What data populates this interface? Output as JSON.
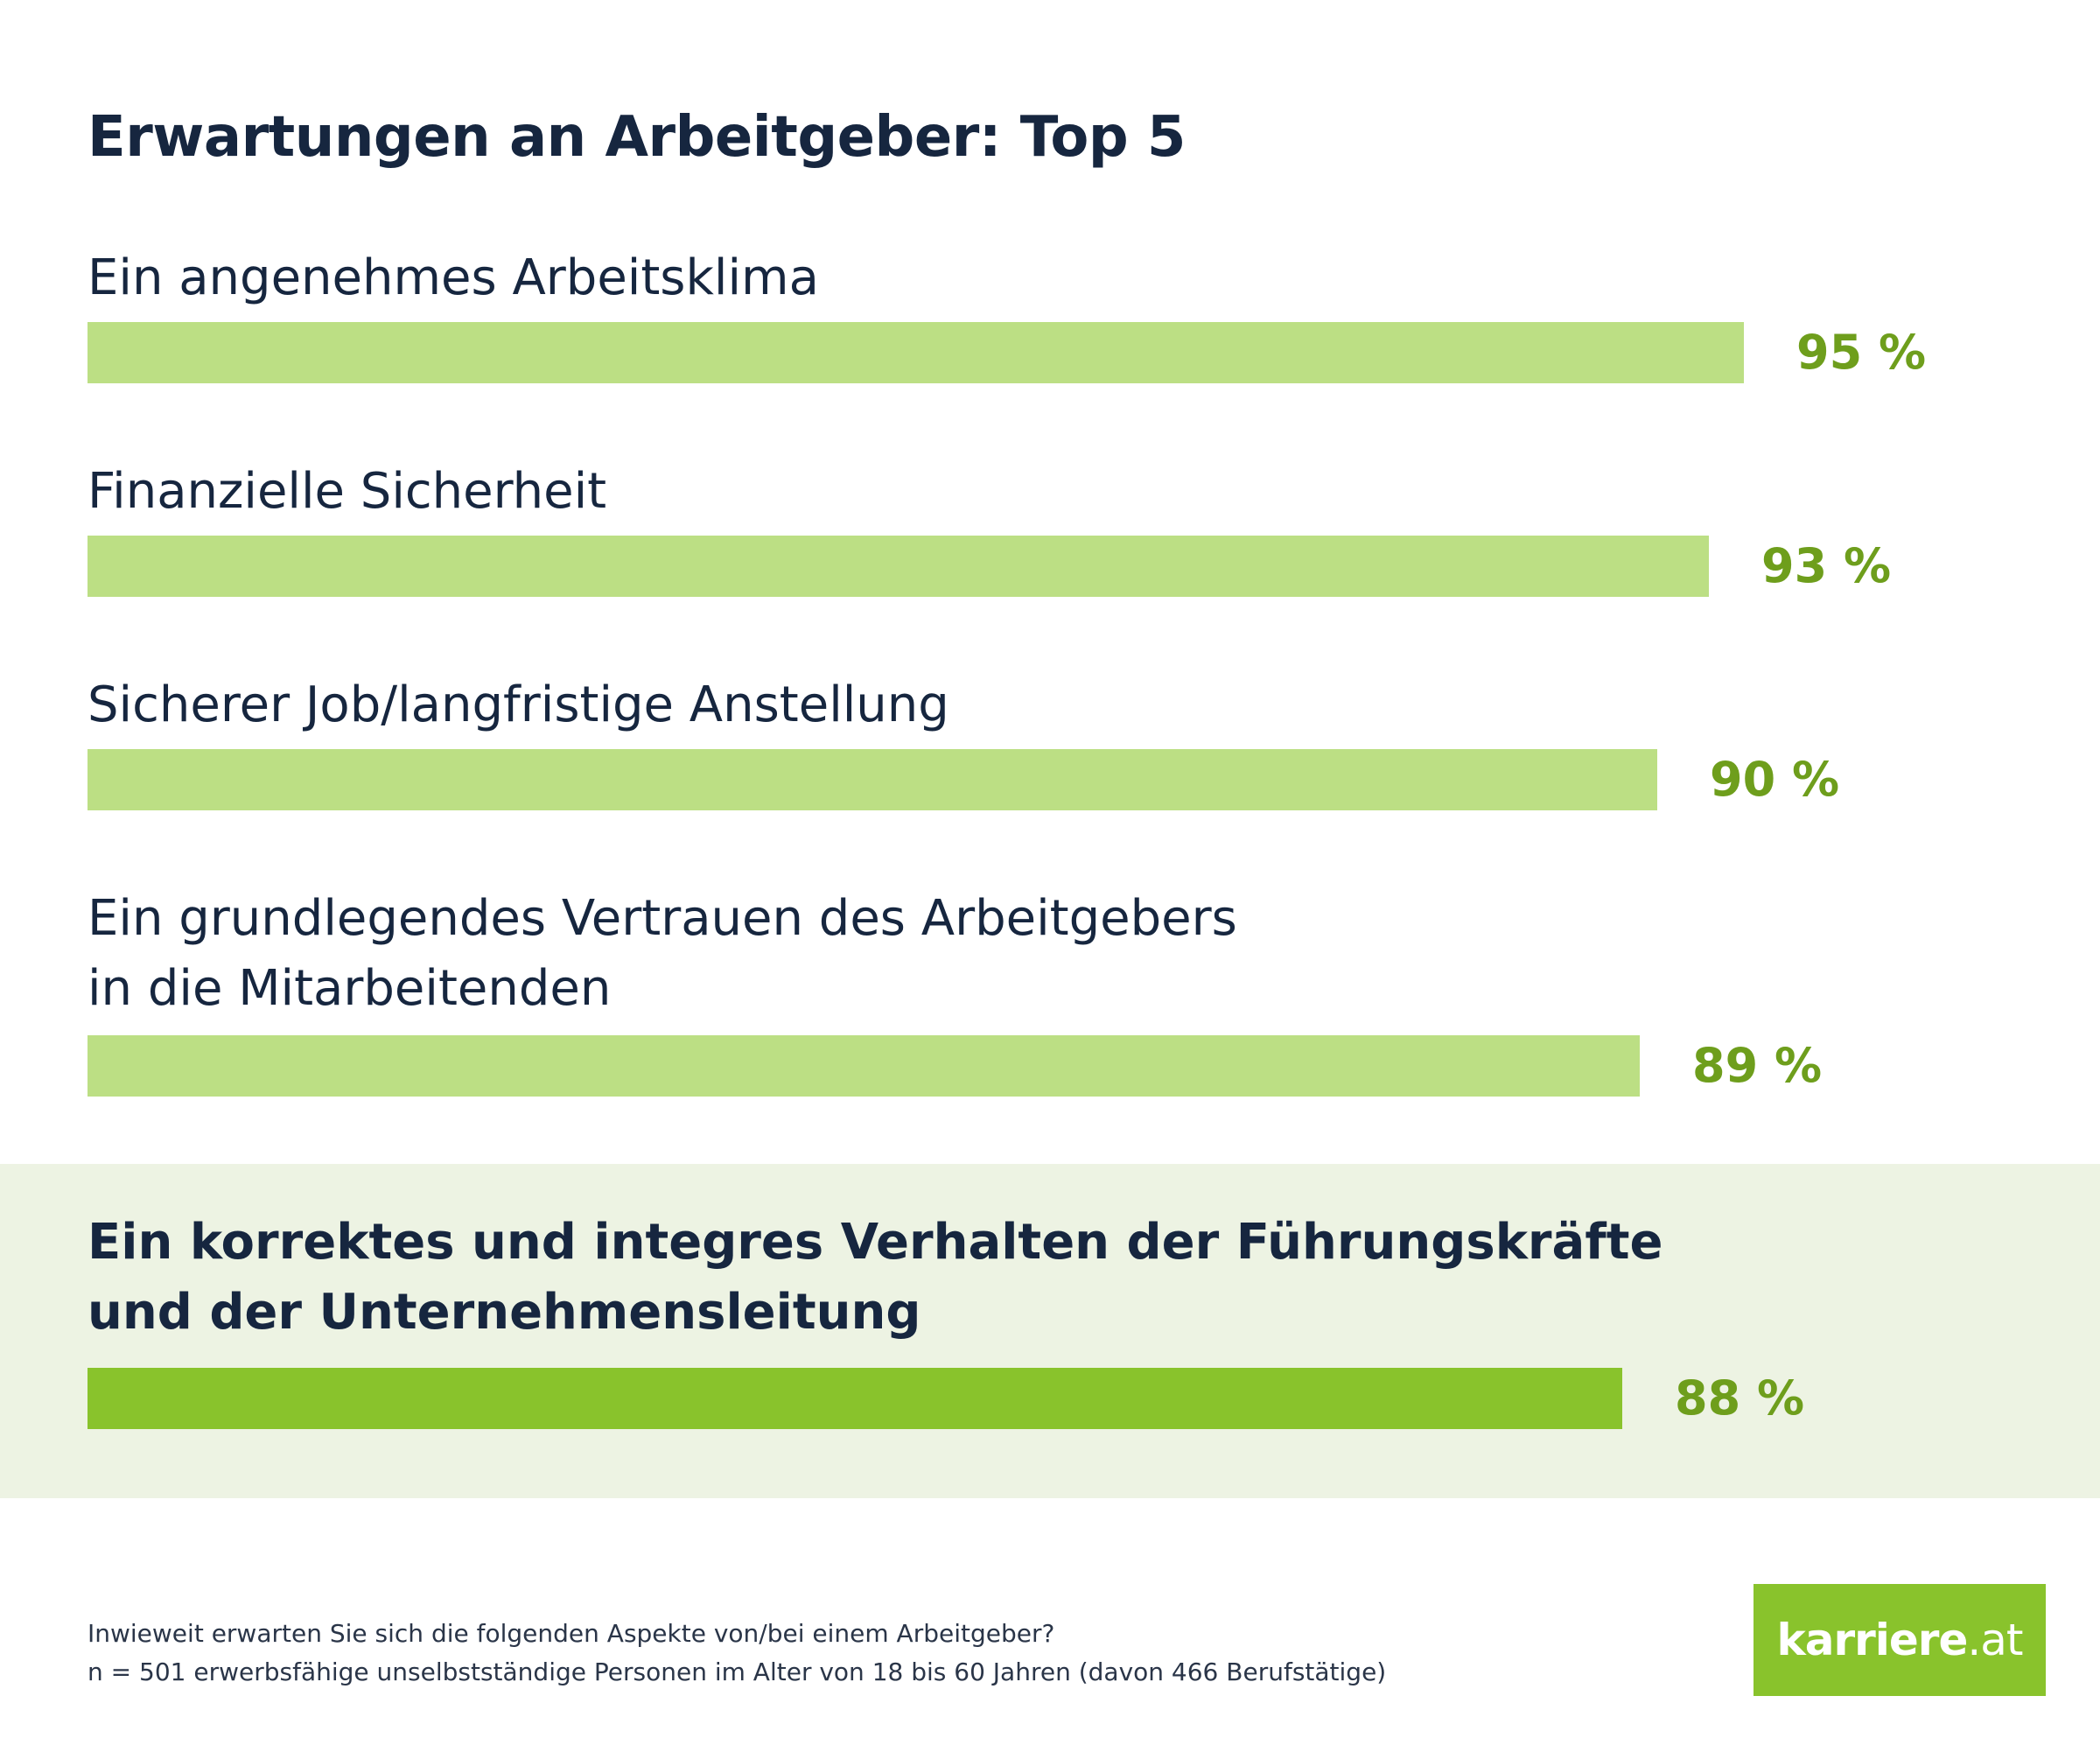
{
  "chart_data": {
    "type": "bar",
    "orientation": "horizontal",
    "title": "Erwartungen an Arbeitgeber: Top 5",
    "categories": [
      "Ein angenehmes Arbeitsklima",
      "Finanzielle Sicherheit",
      "Sicherer Job/langfristige Anstellung",
      "Ein grundlegendes Vertrauen des Arbeitgebers\nin die Mitarbeitenden",
      "Ein korrektes und integres Verhalten der Führungskräfte\nund der Unternehmensleitung"
    ],
    "values": [
      95,
      93,
      90,
      89,
      88
    ],
    "value_labels": [
      "95 %",
      "93 %",
      "90 %",
      "89 %",
      "88 %"
    ],
    "highlighted_index": 4,
    "xlim": [
      0,
      100
    ],
    "xlabel": "",
    "ylabel": "",
    "grid": false
  },
  "footnote": {
    "question": "Inwieweit erwarten Sie sich die folgenden Aspekte von/bei einem Arbeitgeber?",
    "sample": "n = 501 erwerbsfähige unselbstständige Personen im Alter von 18 bis 60 Jahren (davon 466 Berufstätige)"
  },
  "logo": {
    "name": "karriere",
    "tld": ".at"
  },
  "colors": {
    "bar": "#bcdf84",
    "bar_highlight": "#89c32c",
    "value_text": "#6e9e1c",
    "band": "#edf3e3",
    "title_text": "#16263f"
  }
}
